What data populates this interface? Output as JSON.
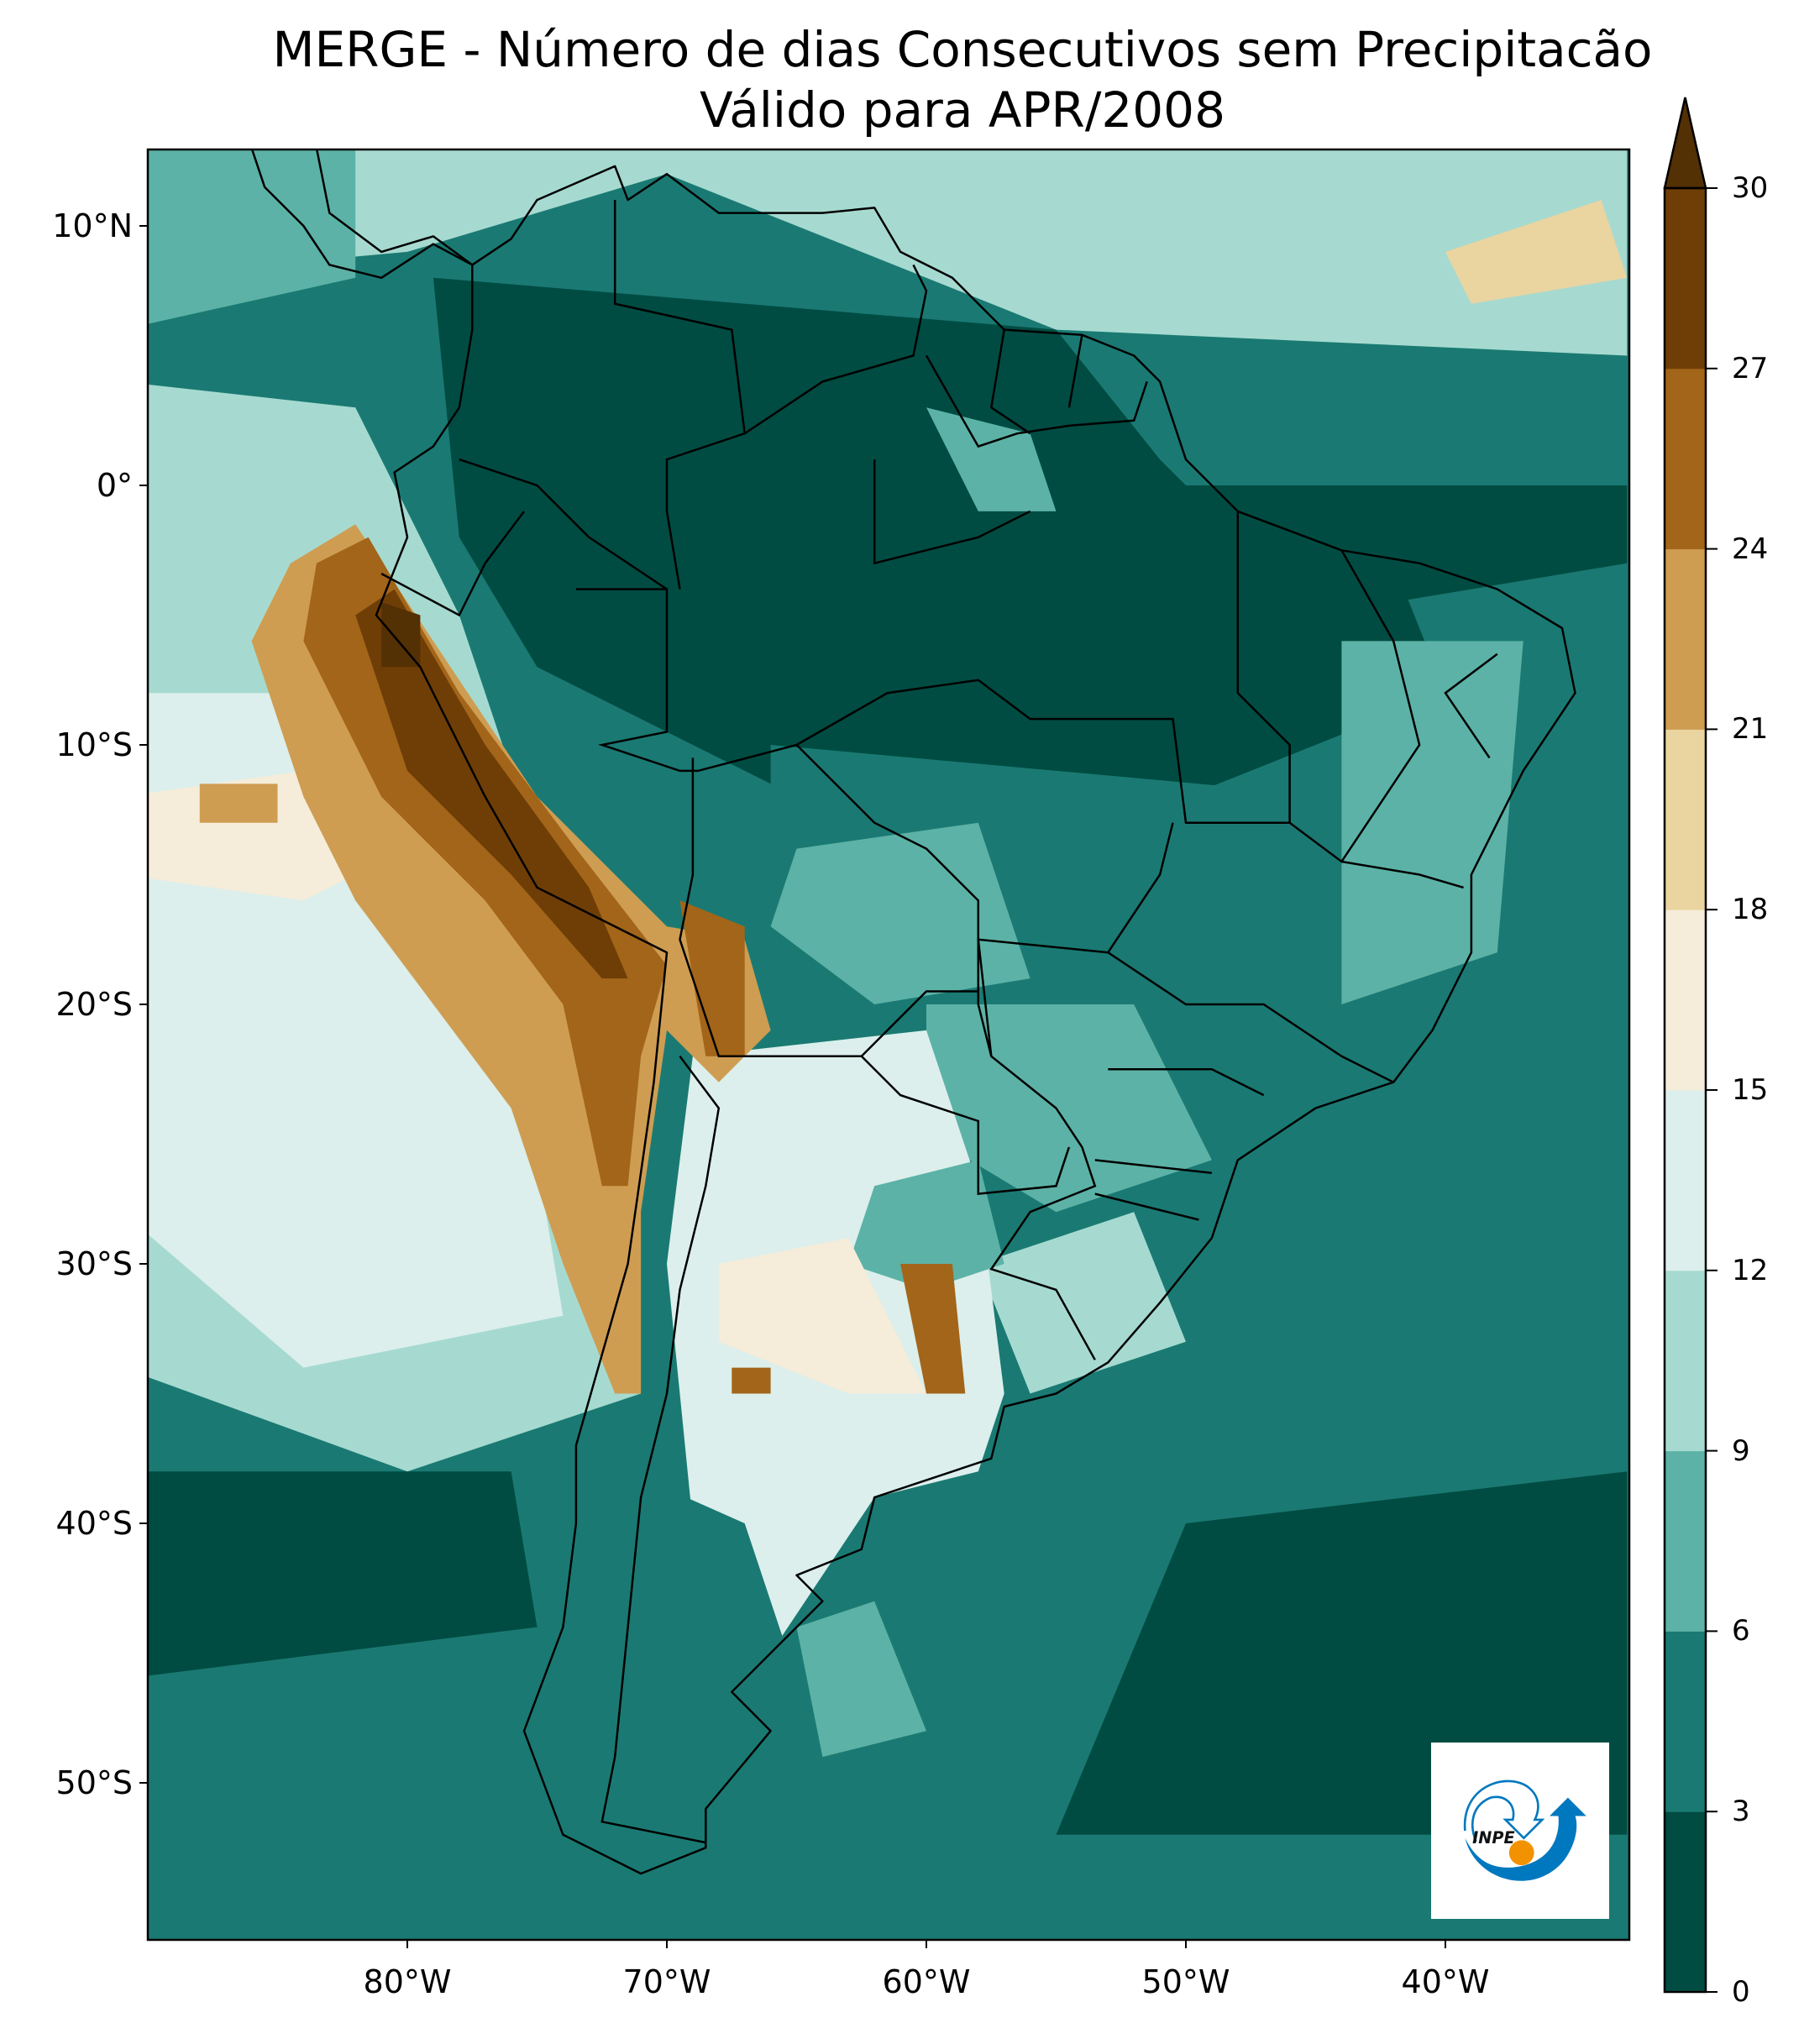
{
  "title": {
    "line1": "MERGE - Número de dias Consecutivos sem Precipitacão",
    "line2": "Válido para APR/2008"
  },
  "axes": {
    "lat_labels": [
      "10°N",
      "0°",
      "10°S",
      "20°S",
      "30°S",
      "40°S",
      "50°S"
    ],
    "lat_values": [
      10,
      0,
      -10,
      -20,
      -30,
      -40,
      -50
    ],
    "lon_labels": [
      "80°W",
      "70°W",
      "60°W",
      "50°W",
      "40°W"
    ],
    "lon_values": [
      -80,
      -70,
      -60,
      -50,
      -40
    ]
  },
  "colorbar": {
    "ticks": [
      "0",
      "3",
      "6",
      "9",
      "12",
      "15",
      "18",
      "21",
      "24",
      "27",
      "30"
    ],
    "colors": [
      "#004c42",
      "#1a7a73",
      "#5cb2a6",
      "#a6dad0",
      "#dcefec",
      "#f5ecd9",
      "#ead4a0",
      "#ce9d52",
      "#a36519",
      "#6f3e07"
    ],
    "extend_color": "#543005",
    "extend": "max"
  },
  "logo": {
    "text": "INPE",
    "blue": "#0078bf",
    "orange": "#f39200"
  }
}
